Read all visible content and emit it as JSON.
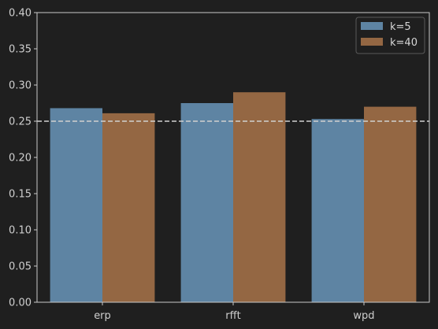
{
  "chart_data": {
    "type": "bar",
    "categories": [
      "erp",
      "rfft",
      "wpd"
    ],
    "series": [
      {
        "name": "k=5",
        "values": [
          0.268,
          0.275,
          0.253
        ],
        "color": "#5e84a3"
      },
      {
        "name": "k=40",
        "values": [
          0.261,
          0.29,
          0.27
        ],
        "color": "#946743"
      }
    ],
    "ylim": [
      0,
      0.4
    ],
    "yticks": [
      "0.00",
      "0.05",
      "0.10",
      "0.15",
      "0.20",
      "0.25",
      "0.30",
      "0.35",
      "0.40"
    ],
    "reference_line": {
      "y": 0.25,
      "style": "dashed",
      "color": "#d0d0d0"
    },
    "legend_position": "top-right",
    "grid": false,
    "background_color": "#1f1f1f",
    "axis_color": "#c8c8c8"
  }
}
